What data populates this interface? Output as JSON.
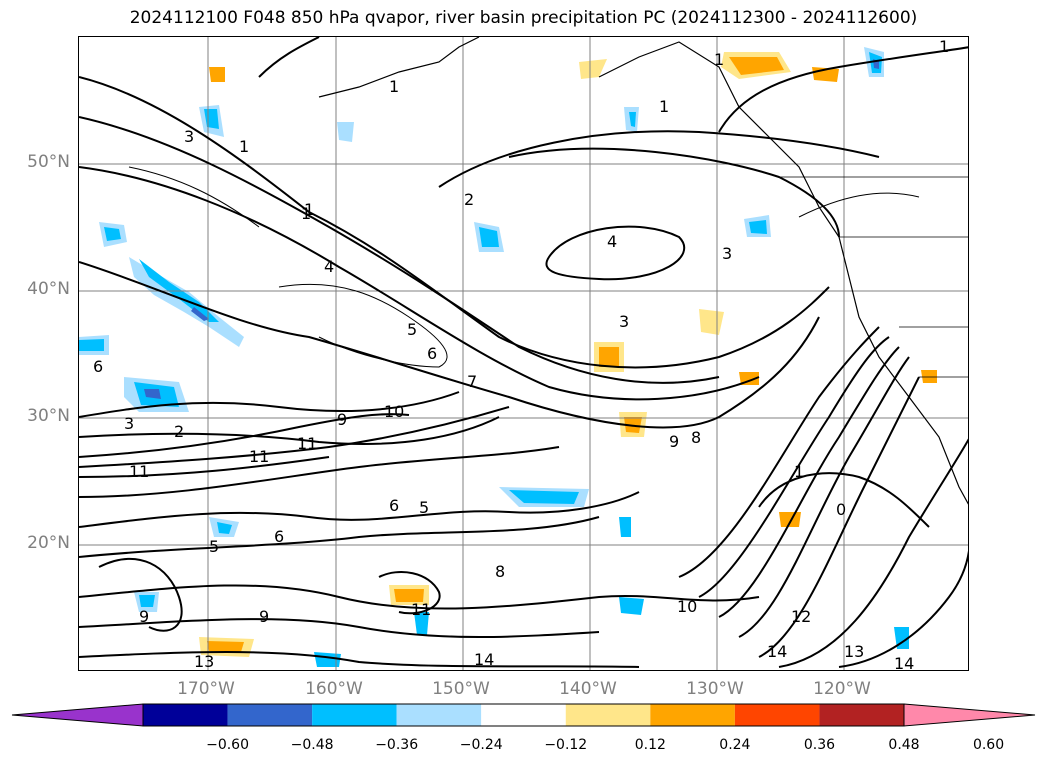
{
  "title": "2024112100 F048 850 hPa qvapor, river basin precipitation PC (2024112300 - 2024112600)",
  "lat_labels": [
    "50°N",
    "40°N",
    "30°N",
    "20°N"
  ],
  "lon_labels": [
    "170°W",
    "160°W",
    "150°W",
    "140°W",
    "130°W",
    "120°W"
  ],
  "colorbar": {
    "ticks": [
      "−0.60",
      "−0.48",
      "−0.36",
      "−0.24",
      "−0.12",
      "0.12",
      "0.24",
      "0.36",
      "0.48",
      "0.60"
    ],
    "colors": [
      "#9933cc",
      "#000099",
      "#3366cc",
      "#00bfff",
      "#aadfff",
      "#ffffff",
      "#ffe68a",
      "#ffa500",
      "#ff4500",
      "#b22222",
      "#ff88aa"
    ]
  },
  "contour_labels": [
    "1",
    "1",
    "1",
    "1",
    "1",
    "1",
    "1",
    "2",
    "3",
    "3",
    "3",
    "4",
    "4",
    "5",
    "5",
    "6",
    "6",
    "7",
    "8",
    "8",
    "9",
    "9",
    "10",
    "10",
    "11",
    "11",
    "11",
    "12",
    "13",
    "13",
    "14",
    "14",
    "14",
    "0",
    "3",
    "2",
    "5",
    "6",
    "9",
    "6",
    "9",
    "1",
    "11"
  ],
  "colors": {
    "contour": "#000000",
    "grid": "#808080",
    "coast": "#000000"
  }
}
